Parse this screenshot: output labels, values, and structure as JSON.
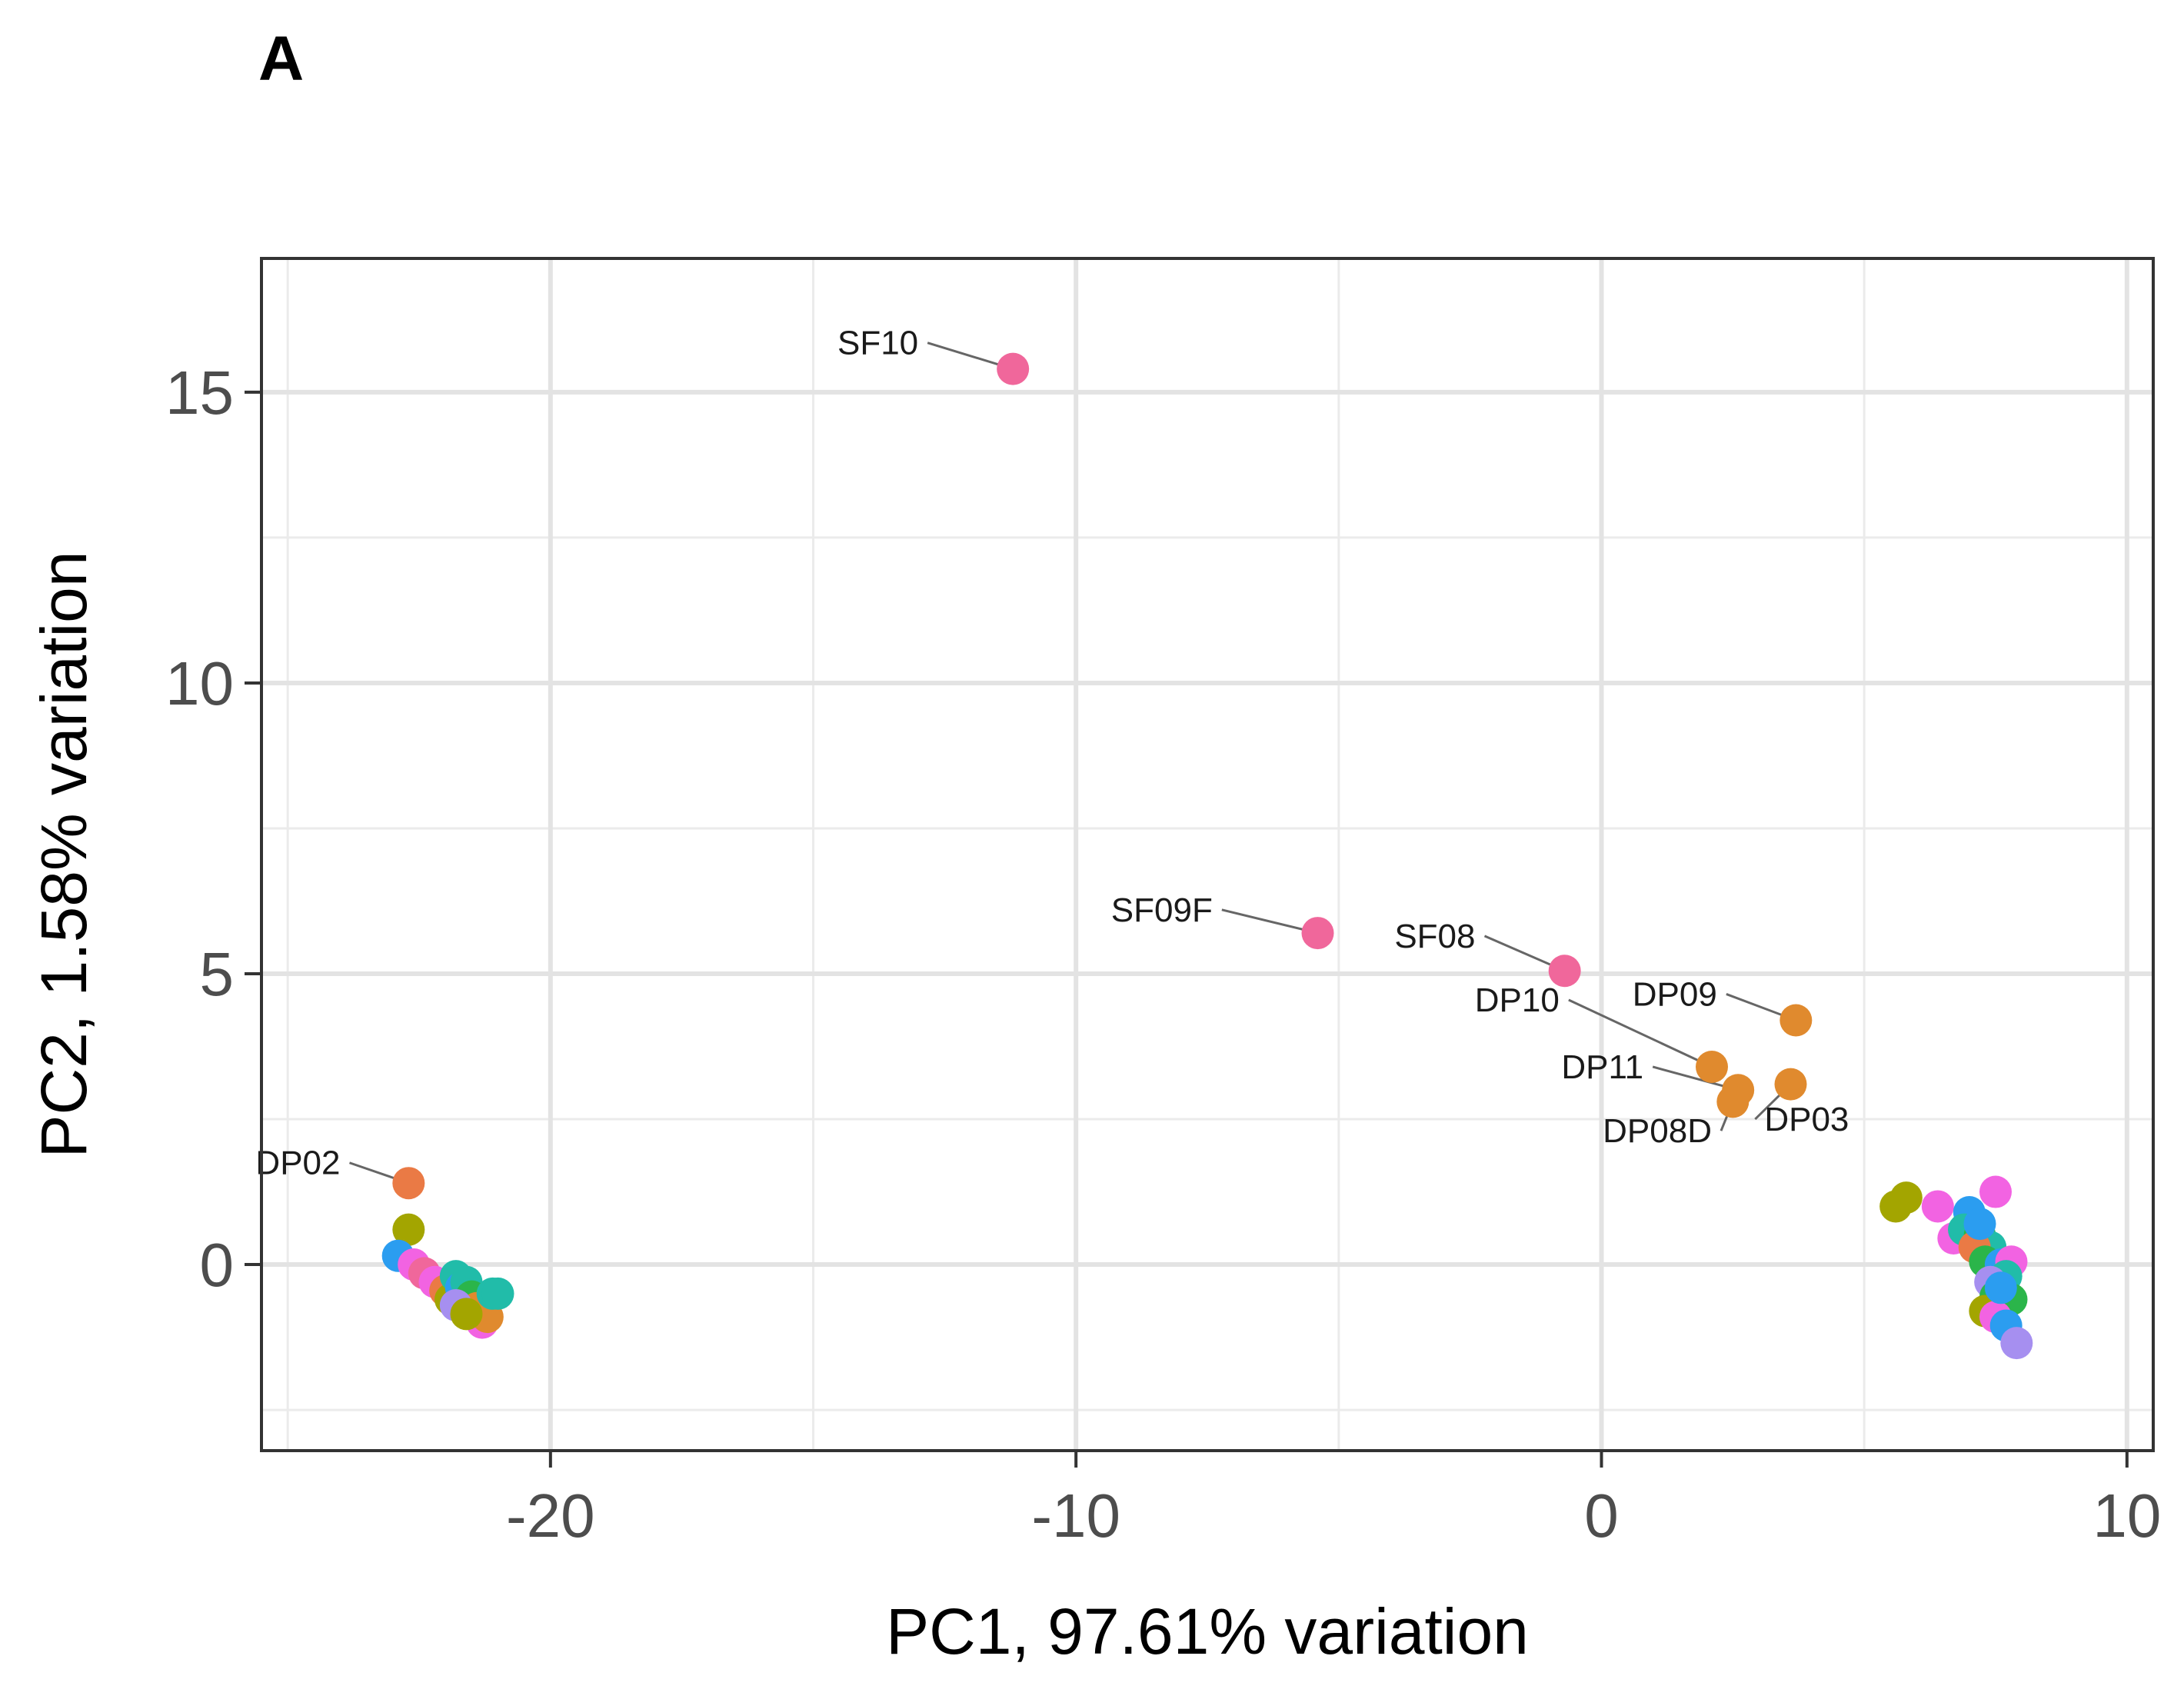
{
  "panel_label": "A",
  "chart_data": {
    "type": "scatter",
    "title": "",
    "xlabel": "PC1, 97.61% variation",
    "ylabel": "PC2, 1.58% variation",
    "xlim": [
      -25.5,
      10.5
    ],
    "ylim": [
      -3.2,
      17.3
    ],
    "xticks": [
      -20,
      -10,
      0,
      10
    ],
    "xtick_labels": [
      "-20",
      "-10",
      "0",
      "10"
    ],
    "yticks": [
      0,
      5,
      10,
      15
    ],
    "ytick_labels": [
      "0",
      "5",
      "10",
      "15"
    ],
    "x_minor": [
      -25,
      -15,
      -5,
      5
    ],
    "y_minor": [
      -2.5,
      2.5,
      7.5,
      12.5
    ],
    "colors": {
      "pink": "#f0679b",
      "orange": "#e08a2e",
      "coral": "#ea7a45",
      "olive": "#a3a500",
      "green": "#2bb54a",
      "teal": "#21bca9",
      "blue": "#2b9df0",
      "magenta": "#f263e2",
      "purple": "#a68ff0"
    },
    "labeled_points": [
      {
        "label": "SF10",
        "x": -11.2,
        "y": 15.4,
        "color": "pink",
        "lx": -13.0,
        "ly": 15.85,
        "anchor": "end"
      },
      {
        "label": "SF09F",
        "x": -5.4,
        "y": 5.7,
        "color": "pink",
        "lx": -7.4,
        "ly": 6.1,
        "anchor": "end"
      },
      {
        "label": "SF08",
        "x": -0.7,
        "y": 5.05,
        "color": "pink",
        "lx": -2.4,
        "ly": 5.65,
        "anchor": "end"
      },
      {
        "label": "DP09",
        "x": 3.7,
        "y": 4.2,
        "color": "orange",
        "lx": 2.2,
        "ly": 4.65,
        "anchor": "end"
      },
      {
        "label": "DP10",
        "x": 2.1,
        "y": 3.4,
        "color": "orange",
        "lx": -0.8,
        "ly": 4.55,
        "anchor": "end"
      },
      {
        "label": "DP11",
        "x": 2.6,
        "y": 3.0,
        "color": "orange",
        "lx": 0.8,
        "ly": 3.4,
        "anchor": "end"
      },
      {
        "label": "DP08D",
        "x": 2.5,
        "y": 2.8,
        "color": "orange",
        "lx": 2.1,
        "ly": 2.3,
        "anchor": "end"
      },
      {
        "label": "DP03",
        "x": 3.6,
        "y": 3.1,
        "color": "orange",
        "lx": 3.1,
        "ly": 2.5,
        "anchor": "start"
      },
      {
        "label": "DP02",
        "x": -22.7,
        "y": 1.4,
        "color": "coral",
        "lx": -24.0,
        "ly": 1.75,
        "anchor": "end"
      }
    ],
    "points": [
      {
        "x": -22.7,
        "y": 0.6,
        "color": "olive"
      },
      {
        "x": -22.9,
        "y": 0.15,
        "color": "blue"
      },
      {
        "x": -22.6,
        "y": 0.0,
        "color": "magenta"
      },
      {
        "x": -22.4,
        "y": -0.15,
        "color": "pink"
      },
      {
        "x": -22.2,
        "y": -0.3,
        "color": "magenta"
      },
      {
        "x": -22.0,
        "y": -0.45,
        "color": "coral"
      },
      {
        "x": -21.9,
        "y": -0.6,
        "color": "olive"
      },
      {
        "x": -21.8,
        "y": -0.2,
        "color": "teal"
      },
      {
        "x": -21.7,
        "y": -0.4,
        "color": "blue"
      },
      {
        "x": -21.6,
        "y": -0.3,
        "color": "teal"
      },
      {
        "x": -21.5,
        "y": -0.55,
        "color": "green"
      },
      {
        "x": -21.4,
        "y": -0.75,
        "color": "orange"
      },
      {
        "x": -21.3,
        "y": -1.0,
        "color": "magenta"
      },
      {
        "x": -21.2,
        "y": -0.9,
        "color": "orange"
      },
      {
        "x": -21.1,
        "y": -0.5,
        "color": "teal"
      },
      {
        "x": -21.0,
        "y": -0.5,
        "color": "teal"
      },
      {
        "x": -21.8,
        "y": -0.7,
        "color": "purple"
      },
      {
        "x": -21.6,
        "y": -0.85,
        "color": "olive"
      },
      {
        "x": 5.6,
        "y": 1.0,
        "color": "olive"
      },
      {
        "x": 5.8,
        "y": 1.15,
        "color": "olive"
      },
      {
        "x": 6.4,
        "y": 1.0,
        "color": "magenta"
      },
      {
        "x": 6.7,
        "y": 0.45,
        "color": "magenta"
      },
      {
        "x": 7.0,
        "y": 0.9,
        "color": "blue"
      },
      {
        "x": 6.9,
        "y": 0.6,
        "color": "teal"
      },
      {
        "x": 7.2,
        "y": 0.5,
        "color": "green"
      },
      {
        "x": 7.4,
        "y": 0.3,
        "color": "teal"
      },
      {
        "x": 7.5,
        "y": 1.25,
        "color": "magenta"
      },
      {
        "x": 7.1,
        "y": 0.3,
        "color": "coral"
      },
      {
        "x": 7.3,
        "y": 0.05,
        "color": "green"
      },
      {
        "x": 7.6,
        "y": 0.0,
        "color": "blue"
      },
      {
        "x": 7.8,
        "y": 0.05,
        "color": "magenta"
      },
      {
        "x": 7.7,
        "y": -0.2,
        "color": "teal"
      },
      {
        "x": 7.4,
        "y": -0.3,
        "color": "purple"
      },
      {
        "x": 7.5,
        "y": -0.55,
        "color": "green"
      },
      {
        "x": 7.8,
        "y": -0.6,
        "color": "green"
      },
      {
        "x": 7.3,
        "y": -0.8,
        "color": "olive"
      },
      {
        "x": 7.5,
        "y": -0.9,
        "color": "magenta"
      },
      {
        "x": 7.7,
        "y": -1.05,
        "color": "blue"
      },
      {
        "x": 7.9,
        "y": -1.35,
        "color": "purple"
      },
      {
        "x": 7.6,
        "y": -0.4,
        "color": "blue"
      },
      {
        "x": 7.2,
        "y": 0.7,
        "color": "blue"
      }
    ]
  }
}
